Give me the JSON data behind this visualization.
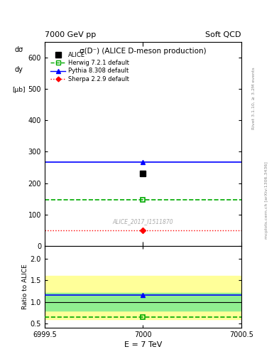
{
  "title_left": "7000 GeV pp",
  "title_right": "Soft QCD",
  "plot_title": "σ(D⁻) (ALICE D-meson production)",
  "xlabel": "E = 7 TeV",
  "ylabel_main": "dσ/dy [μb]",
  "ylabel_ratio": "Ratio to ALICE",
  "watermark": "ALICE_2017_I1511870",
  "right_label_top": "Rivet 3.1.10, ≥ 3.2M events",
  "right_label_bot": "mcplots.cern.ch [arXiv:1306.3436]",
  "xlim": [
    6999.5,
    7000.5
  ],
  "ylim_main": [
    0,
    650
  ],
  "ylim_ratio": [
    0.4,
    2.3
  ],
  "yticks_main": [
    0,
    100,
    200,
    300,
    400,
    500,
    600
  ],
  "yticks_ratio": [
    0.5,
    1.0,
    1.5,
    2.0
  ],
  "x_center": 7000,
  "x_line_start": 6999.5,
  "x_line_end": 7000.5,
  "alice_y": 230,
  "alice_color": "#000000",
  "alice_label": "ALICE",
  "herwig_y": 148,
  "herwig_ratio": 0.644,
  "herwig_color": "#00aa00",
  "herwig_label": "Herwig 7.2.1 default",
  "herwig_linestyle": "dashed",
  "pythia_y": 268,
  "pythia_ratio": 1.165,
  "pythia_color": "#0000ff",
  "pythia_label": "Pythia 8.308 default",
  "pythia_linestyle": "solid",
  "sherpa_y": 49,
  "sherpa_color": "#ff0000",
  "sherpa_label": "Sherpa 2.2.9 default",
  "sherpa_linestyle": "dotted",
  "band_green_inner_lo": 0.8,
  "band_green_inner_hi": 1.2,
  "band_yellow_outer_lo": 0.6,
  "band_yellow_outer_hi": 1.6,
  "ratio_line_y": 1.0,
  "bg_color": "#ffffff",
  "band_green_color": "#90ee90",
  "band_yellow_color": "#ffff99"
}
